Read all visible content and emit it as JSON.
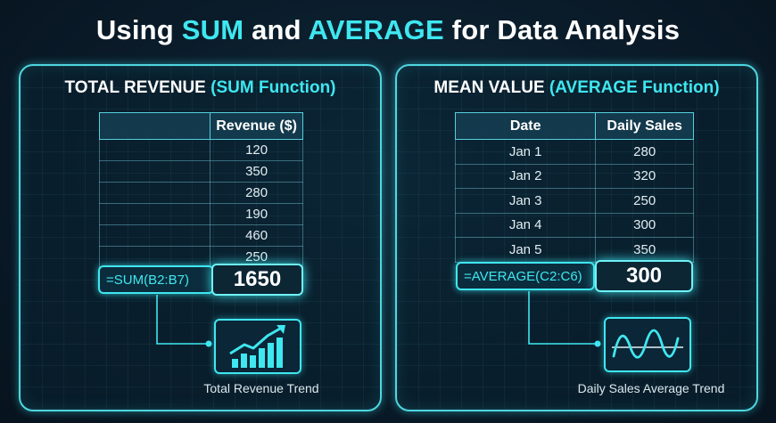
{
  "title": {
    "part1": "Using ",
    "sum": "SUM",
    "part2": " and ",
    "average": "AVERAGE",
    "part3": " for Data Analysis"
  },
  "left_panel": {
    "heading_main": "TOTAL REVENUE ",
    "heading_accent": "(SUM Function)",
    "table": {
      "headers": [
        "",
        "Revenue ($)"
      ],
      "rows": [
        [
          "",
          "120"
        ],
        [
          "",
          "350"
        ],
        [
          "",
          "280"
        ],
        [
          "",
          "190"
        ],
        [
          "",
          "460"
        ],
        [
          "",
          "250"
        ]
      ]
    },
    "formula": "=SUM(B2:B7)",
    "result": "1650",
    "icon": "bar-chart-trend-up-icon",
    "caption": "Total Revenue Trend"
  },
  "right_panel": {
    "heading_main": "MEAN VALUE ",
    "heading_accent": "(AVERAGE Function)",
    "table": {
      "headers": [
        "Date",
        "Daily Sales"
      ],
      "rows": [
        [
          "Jan 1",
          "280"
        ],
        [
          "Jan 2",
          "320"
        ],
        [
          "Jan 3",
          "250"
        ],
        [
          "Jan 4",
          "300"
        ],
        [
          "Jan 5",
          "350"
        ]
      ]
    },
    "formula": "=AVERAGE(C2:C6)",
    "result": "300",
    "icon": "wave-line-chart-icon",
    "caption": "Daily Sales Average Trend"
  },
  "colors": {
    "accent": "#3fe7f0",
    "background": "#0a1b29",
    "text": "#ffffff"
  }
}
